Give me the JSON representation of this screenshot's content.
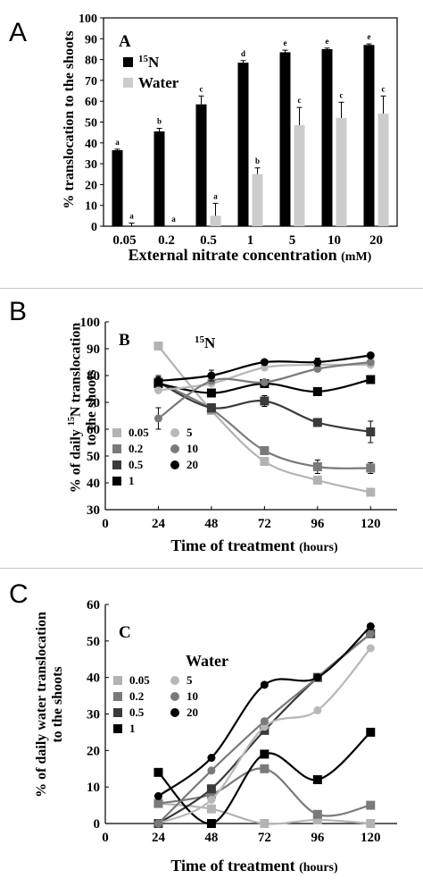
{
  "panel_letters": [
    "A",
    "B",
    "C"
  ],
  "chart_data": [
    {
      "type": "bar",
      "panel_title": "A",
      "ylabel": "% translocation to the shoots",
      "xlabel": "External nitrate concentration",
      "xlabel_unit": "(mM)",
      "ylim": [
        0,
        100
      ],
      "yticks": [
        0,
        10,
        20,
        30,
        40,
        50,
        60,
        70,
        80,
        90,
        100
      ],
      "categories": [
        "0.05",
        "0.2",
        "0.5",
        "1",
        "5",
        "10",
        "20"
      ],
      "legend_position": "top-left",
      "colors": {
        "15N": "#000000",
        "Water": "#cccccc"
      },
      "series": [
        {
          "name": "15N",
          "legend_sup": "15",
          "legend_main": "N",
          "values": [
            36.5,
            45.5,
            58.5,
            78.5,
            83.5,
            85,
            87
          ],
          "errors": [
            0.5,
            1.5,
            4,
            1,
            1,
            0.5,
            0.5
          ],
          "letters": [
            "a",
            "b",
            "c",
            "d",
            "e",
            "e",
            "e"
          ]
        },
        {
          "name": "Water",
          "legend_main": "Water",
          "values": [
            0,
            0,
            5,
            25,
            48.5,
            52,
            54
          ],
          "errors": [
            1.5,
            0,
            6,
            3,
            8.5,
            7.5,
            8.5
          ],
          "letters": [
            "a",
            "a",
            "a",
            "b",
            "c",
            "c",
            "c"
          ]
        }
      ]
    },
    {
      "type": "line",
      "panel_title": "B",
      "inner_title_sup": "15",
      "inner_title_main": "N",
      "ylabel_parts": [
        "% of daily ",
        "15",
        "N translocation",
        "to the shoots"
      ],
      "xlabel": "Time of treatment",
      "xlabel_unit": "(hours)",
      "xlim": [
        0,
        132
      ],
      "ylim": [
        30,
        100
      ],
      "xticks": [
        0,
        24,
        48,
        72,
        96,
        120
      ],
      "yticks": [
        30,
        40,
        50,
        60,
        70,
        80,
        90,
        100
      ],
      "x": [
        24,
        48,
        72,
        96,
        120
      ],
      "legend_position": "lower-left",
      "series": [
        {
          "name": "0.05",
          "marker": "square",
          "color": "#b3b3b3",
          "values": [
            91,
            67,
            48,
            41,
            36.5
          ],
          "errors": [
            0,
            0,
            0,
            1.5,
            1
          ]
        },
        {
          "name": "0.2",
          "marker": "square",
          "color": "#7a7a7a",
          "values": [
            77.5,
            67.5,
            52,
            46,
            45.5
          ],
          "errors": [
            2,
            0,
            1.5,
            2.5,
            2
          ]
        },
        {
          "name": "0.5",
          "marker": "square",
          "color": "#3a3a3a",
          "values": [
            77.5,
            68,
            70.5,
            62.5,
            59
          ],
          "errors": [
            0,
            1.5,
            2,
            0,
            4
          ]
        },
        {
          "name": "1",
          "marker": "square",
          "color": "#000000",
          "values": [
            77,
            73.5,
            77,
            74,
            78.5
          ],
          "errors": [
            0,
            0,
            0,
            0,
            0
          ]
        },
        {
          "name": "5",
          "marker": "circle",
          "color": "#b8b8b8",
          "values": [
            74.5,
            77,
            83,
            84,
            84
          ],
          "errors": [
            0,
            0,
            0,
            0,
            0
          ]
        },
        {
          "name": "10",
          "marker": "circle",
          "color": "#7a7a7a",
          "values": [
            64,
            78,
            77.5,
            82.5,
            85
          ],
          "errors": [
            4,
            0,
            0,
            0,
            0
          ]
        },
        {
          "name": "20",
          "marker": "circle",
          "color": "#000000",
          "values": [
            78,
            80,
            85,
            85,
            87.5
          ],
          "errors": [
            2,
            2,
            0,
            1.5,
            1
          ]
        }
      ]
    },
    {
      "type": "line",
      "panel_title": "C",
      "inner_title": "Water",
      "ylabel": [
        "% of daily water translocation",
        "to the shoots"
      ],
      "xlabel": "Time of treatment",
      "xlabel_unit": "(hours)",
      "xlim": [
        0,
        132
      ],
      "ylim": [
        0,
        60
      ],
      "xticks": [
        0,
        24,
        48,
        72,
        96,
        120
      ],
      "yticks": [
        0,
        10,
        20,
        30,
        40,
        50,
        60
      ],
      "x": [
        24,
        48,
        72,
        96,
        120
      ],
      "legend_position": "center-left",
      "series": [
        {
          "name": "0.05",
          "marker": "square",
          "color": "#b3b3b3",
          "values": [
            5.5,
            4,
            0,
            1,
            0
          ]
        },
        {
          "name": "0.2",
          "marker": "square",
          "color": "#7a7a7a",
          "values": [
            5.5,
            8,
            15,
            2.5,
            5
          ]
        },
        {
          "name": "0.5",
          "marker": "square",
          "color": "#3a3a3a",
          "values": [
            0,
            9.5,
            25.5,
            40,
            52
          ]
        },
        {
          "name": "1",
          "marker": "square",
          "color": "#000000",
          "values": [
            14,
            0,
            19,
            12,
            25
          ]
        },
        {
          "name": "5",
          "marker": "circle",
          "color": "#b8b8b8",
          "values": [
            0,
            6.5,
            26.5,
            31,
            48
          ]
        },
        {
          "name": "10",
          "marker": "circle",
          "color": "#7a7a7a",
          "values": [
            0,
            14.5,
            28,
            40,
            52
          ]
        },
        {
          "name": "20",
          "marker": "circle",
          "color": "#000000",
          "values": [
            7.5,
            18,
            38,
            40,
            54
          ]
        }
      ]
    }
  ]
}
